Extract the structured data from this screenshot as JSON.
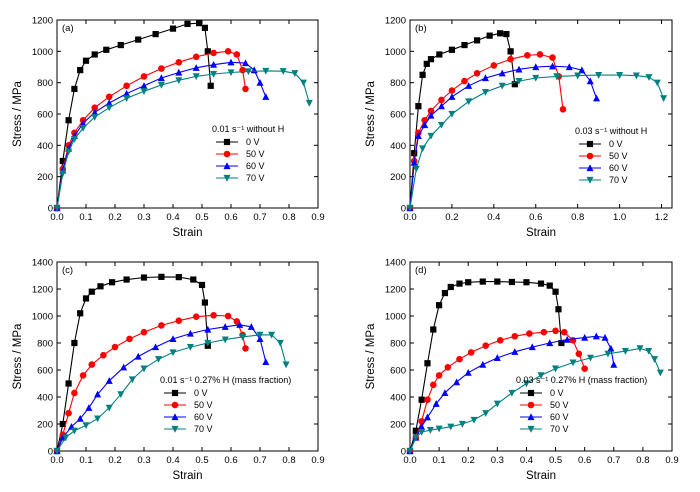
{
  "chart_data": [
    {
      "panel": "(a)",
      "type": "line",
      "xlabel": "Strain",
      "ylabel": "Stress / MPa",
      "xlim": [
        0,
        0.9
      ],
      "ylim": [
        0,
        1200
      ],
      "xticks": [
        "0.0",
        "0.1",
        "0.2",
        "0.3",
        "0.4",
        "0.5",
        "0.6",
        "0.7",
        "0.8",
        "0.9"
      ],
      "xtick_values": [
        0,
        0.1,
        0.2,
        0.3,
        0.4,
        0.5,
        0.6,
        0.7,
        0.8,
        0.9
      ],
      "yticks": [
        "0",
        "200",
        "400",
        "600",
        "800",
        "1000",
        "1200"
      ],
      "ytick_values": [
        0,
        200,
        400,
        600,
        800,
        1000,
        1200
      ],
      "legend_title": "0.01 s⁻¹ without H",
      "legend_placement": "middle-right",
      "grid": false,
      "series": [
        {
          "name": "0 V",
          "color": "#000000",
          "marker": "square",
          "x": [
            0,
            0.02,
            0.04,
            0.06,
            0.08,
            0.1,
            0.13,
            0.17,
            0.22,
            0.28,
            0.34,
            0.4,
            0.45,
            0.49,
            0.51,
            0.52,
            0.53
          ],
          "y": [
            0,
            300,
            560,
            760,
            880,
            940,
            980,
            1010,
            1040,
            1075,
            1110,
            1145,
            1175,
            1180,
            1150,
            1000,
            780
          ]
        },
        {
          "name": "50 V",
          "color": "#ff0000",
          "marker": "circle",
          "x": [
            0,
            0.02,
            0.04,
            0.06,
            0.09,
            0.13,
            0.18,
            0.24,
            0.3,
            0.36,
            0.42,
            0.48,
            0.54,
            0.59,
            0.62,
            0.64,
            0.65
          ],
          "y": [
            0,
            250,
            400,
            480,
            560,
            640,
            710,
            780,
            840,
            890,
            930,
            965,
            990,
            1000,
            980,
            880,
            760
          ]
        },
        {
          "name": "60 V",
          "color": "#0000ff",
          "marker": "triangle-up",
          "x": [
            0,
            0.02,
            0.04,
            0.06,
            0.09,
            0.13,
            0.18,
            0.24,
            0.3,
            0.36,
            0.42,
            0.48,
            0.54,
            0.6,
            0.65,
            0.68,
            0.7,
            0.72
          ],
          "y": [
            0,
            240,
            380,
            460,
            540,
            610,
            670,
            730,
            780,
            830,
            865,
            895,
            915,
            930,
            925,
            880,
            800,
            710
          ]
        },
        {
          "name": "70 V",
          "color": "#008080",
          "marker": "triangle-down",
          "x": [
            0,
            0.02,
            0.04,
            0.06,
            0.09,
            0.13,
            0.18,
            0.24,
            0.3,
            0.36,
            0.42,
            0.48,
            0.54,
            0.6,
            0.66,
            0.72,
            0.78,
            0.82,
            0.85,
            0.87
          ],
          "y": [
            0,
            220,
            360,
            440,
            510,
            580,
            640,
            700,
            745,
            785,
            815,
            840,
            855,
            865,
            872,
            875,
            873,
            860,
            800,
            670
          ]
        }
      ]
    },
    {
      "panel": "(b)",
      "type": "line",
      "xlabel": "Strain",
      "ylabel": "Stress / MPa",
      "xlim": [
        0,
        1.25
      ],
      "ylim": [
        0,
        1200
      ],
      "xticks": [
        "0.0",
        "0.2",
        "0.4",
        "0.6",
        "0.8",
        "1.0",
        "1.2"
      ],
      "xtick_values": [
        0,
        0.2,
        0.4,
        0.6,
        0.8,
        1.0,
        1.2
      ],
      "yticks": [
        "0",
        "200",
        "400",
        "600",
        "800",
        "1000",
        "1200"
      ],
      "ytick_values": [
        0,
        200,
        400,
        600,
        800,
        1000,
        1200
      ],
      "legend_title": "0.03 s⁻¹ without H",
      "legend_placement": "lower-middle",
      "grid": false,
      "series": [
        {
          "name": "0 V",
          "color": "#000000",
          "marker": "square",
          "x": [
            0,
            0.02,
            0.04,
            0.06,
            0.08,
            0.1,
            0.14,
            0.2,
            0.26,
            0.32,
            0.38,
            0.43,
            0.46,
            0.48,
            0.5
          ],
          "y": [
            0,
            350,
            650,
            850,
            920,
            950,
            980,
            1010,
            1040,
            1070,
            1100,
            1115,
            1110,
            1000,
            790
          ]
        },
        {
          "name": "50 V",
          "color": "#ff0000",
          "marker": "circle",
          "x": [
            0,
            0.02,
            0.04,
            0.07,
            0.1,
            0.15,
            0.2,
            0.26,
            0.32,
            0.4,
            0.48,
            0.56,
            0.62,
            0.68,
            0.71,
            0.73
          ],
          "y": [
            0,
            300,
            480,
            560,
            620,
            690,
            750,
            810,
            860,
            910,
            950,
            975,
            980,
            960,
            840,
            630
          ]
        },
        {
          "name": "60 V",
          "color": "#0000ff",
          "marker": "triangle-up",
          "x": [
            0,
            0.02,
            0.04,
            0.07,
            0.1,
            0.15,
            0.2,
            0.28,
            0.36,
            0.44,
            0.52,
            0.6,
            0.68,
            0.76,
            0.82,
            0.86,
            0.89
          ],
          "y": [
            0,
            290,
            460,
            530,
            590,
            650,
            710,
            780,
            830,
            860,
            885,
            900,
            905,
            900,
            880,
            810,
            700
          ]
        },
        {
          "name": "70 V",
          "color": "#008080",
          "marker": "triangle-down",
          "x": [
            0,
            0.03,
            0.06,
            0.1,
            0.15,
            0.2,
            0.28,
            0.36,
            0.44,
            0.52,
            0.6,
            0.7,
            0.8,
            0.9,
            1.0,
            1.08,
            1.14,
            1.18,
            1.21
          ],
          "y": [
            0,
            250,
            380,
            460,
            530,
            600,
            680,
            740,
            780,
            810,
            830,
            840,
            845,
            848,
            848,
            845,
            835,
            800,
            700
          ]
        }
      ]
    },
    {
      "panel": "(c)",
      "type": "line",
      "xlabel": "Strain",
      "ylabel": "Stress / MPa",
      "xlim": [
        0,
        0.9
      ],
      "ylim": [
        0,
        1400
      ],
      "xticks": [
        "0.0",
        "0.1",
        "0.2",
        "0.3",
        "0.4",
        "0.5",
        "0.6",
        "0.7",
        "0.8",
        "0.9"
      ],
      "xtick_values": [
        0,
        0.1,
        0.2,
        0.3,
        0.4,
        0.5,
        0.6,
        0.7,
        0.8,
        0.9
      ],
      "yticks": [
        "0",
        "200",
        "400",
        "600",
        "800",
        "1000",
        "1200",
        "1400"
      ],
      "ytick_values": [
        0,
        200,
        400,
        600,
        800,
        1000,
        1200,
        1400
      ],
      "legend_title": "0.01 s⁻¹ 0.27% H (mass fraction)",
      "legend_placement": "lower-middle",
      "grid": false,
      "series": [
        {
          "name": "0 V",
          "color": "#000000",
          "marker": "square",
          "x": [
            0,
            0.02,
            0.04,
            0.06,
            0.08,
            0.1,
            0.12,
            0.15,
            0.19,
            0.24,
            0.3,
            0.36,
            0.42,
            0.47,
            0.5,
            0.51,
            0.52
          ],
          "y": [
            0,
            200,
            500,
            800,
            1020,
            1130,
            1180,
            1220,
            1250,
            1270,
            1285,
            1290,
            1288,
            1270,
            1230,
            1100,
            780
          ]
        },
        {
          "name": "50 V",
          "color": "#ff0000",
          "marker": "circle",
          "x": [
            0,
            0.02,
            0.04,
            0.06,
            0.09,
            0.12,
            0.16,
            0.2,
            0.25,
            0.3,
            0.36,
            0.42,
            0.48,
            0.54,
            0.59,
            0.62,
            0.64,
            0.65
          ],
          "y": [
            0,
            120,
            280,
            430,
            560,
            640,
            710,
            770,
            830,
            880,
            930,
            965,
            995,
            1005,
            1000,
            960,
            860,
            760
          ]
        },
        {
          "name": "60 V",
          "color": "#0000ff",
          "marker": "triangle-up",
          "x": [
            0,
            0.02,
            0.05,
            0.08,
            0.11,
            0.14,
            0.18,
            0.23,
            0.28,
            0.34,
            0.4,
            0.46,
            0.52,
            0.58,
            0.63,
            0.67,
            0.7,
            0.72
          ],
          "y": [
            0,
            100,
            180,
            240,
            320,
            420,
            520,
            620,
            700,
            770,
            830,
            870,
            900,
            920,
            935,
            920,
            830,
            660
          ]
        },
        {
          "name": "70 V",
          "color": "#008080",
          "marker": "triangle-down",
          "x": [
            0,
            0.03,
            0.06,
            0.1,
            0.14,
            0.18,
            0.22,
            0.26,
            0.3,
            0.35,
            0.4,
            0.46,
            0.52,
            0.58,
            0.64,
            0.7,
            0.74,
            0.77,
            0.79
          ],
          "y": [
            0,
            100,
            150,
            190,
            240,
            320,
            420,
            530,
            610,
            680,
            730,
            770,
            800,
            825,
            845,
            860,
            860,
            800,
            640
          ]
        }
      ]
    },
    {
      "panel": "(d)",
      "type": "line",
      "xlabel": "Strain",
      "ylabel": "Stress / MPa",
      "xlim": [
        0,
        0.9
      ],
      "ylim": [
        0,
        1400
      ],
      "xticks": [
        "0.0",
        "0.1",
        "0.2",
        "0.3",
        "0.4",
        "0.5",
        "0.6",
        "0.7",
        "0.8",
        "0.9"
      ],
      "xtick_values": [
        0,
        0.1,
        0.2,
        0.3,
        0.4,
        0.5,
        0.6,
        0.7,
        0.8,
        0.9
      ],
      "yticks": [
        "0",
        "200",
        "400",
        "600",
        "800",
        "1000",
        "1200",
        "1400"
      ],
      "ytick_values": [
        0,
        200,
        400,
        600,
        800,
        1000,
        1200,
        1400
      ],
      "legend_title": "0.03 s⁻¹ 0.27% H (mass fraction)",
      "legend_placement": "lower-middle",
      "grid": false,
      "series": [
        {
          "name": "0 V",
          "color": "#000000",
          "marker": "square",
          "x": [
            0,
            0.02,
            0.04,
            0.06,
            0.08,
            0.1,
            0.12,
            0.14,
            0.17,
            0.2,
            0.25,
            0.3,
            0.35,
            0.4,
            0.45,
            0.48,
            0.5,
            0.51,
            0.52
          ],
          "y": [
            0,
            150,
            380,
            650,
            900,
            1080,
            1170,
            1215,
            1240,
            1250,
            1255,
            1255,
            1252,
            1250,
            1240,
            1225,
            1180,
            1050,
            800
          ]
        },
        {
          "name": "50 V",
          "color": "#ff0000",
          "marker": "circle",
          "x": [
            0,
            0.02,
            0.04,
            0.06,
            0.08,
            0.1,
            0.13,
            0.17,
            0.21,
            0.26,
            0.31,
            0.36,
            0.41,
            0.46,
            0.5,
            0.53,
            0.56,
            0.58,
            0.6
          ],
          "y": [
            0,
            100,
            220,
            380,
            490,
            560,
            620,
            680,
            730,
            780,
            820,
            850,
            870,
            880,
            890,
            880,
            820,
            720,
            610
          ]
        },
        {
          "name": "60 V",
          "color": "#0000ff",
          "marker": "triangle-up",
          "x": [
            0,
            0.02,
            0.04,
            0.06,
            0.09,
            0.12,
            0.16,
            0.2,
            0.25,
            0.3,
            0.36,
            0.42,
            0.48,
            0.54,
            0.6,
            0.64,
            0.67,
            0.69,
            0.7
          ],
          "y": [
            0,
            100,
            180,
            250,
            350,
            430,
            510,
            580,
            640,
            690,
            735,
            770,
            800,
            825,
            840,
            850,
            840,
            760,
            640
          ]
        },
        {
          "name": "70 V",
          "color": "#008080",
          "marker": "triangle-down",
          "x": [
            0,
            0.02,
            0.04,
            0.07,
            0.1,
            0.14,
            0.18,
            0.22,
            0.26,
            0.3,
            0.35,
            0.4,
            0.45,
            0.5,
            0.56,
            0.62,
            0.68,
            0.74,
            0.79,
            0.82,
            0.84,
            0.86
          ],
          "y": [
            0,
            100,
            140,
            155,
            165,
            180,
            200,
            230,
            280,
            350,
            430,
            500,
            560,
            610,
            655,
            690,
            720,
            740,
            760,
            740,
            680,
            580
          ]
        }
      ]
    }
  ]
}
